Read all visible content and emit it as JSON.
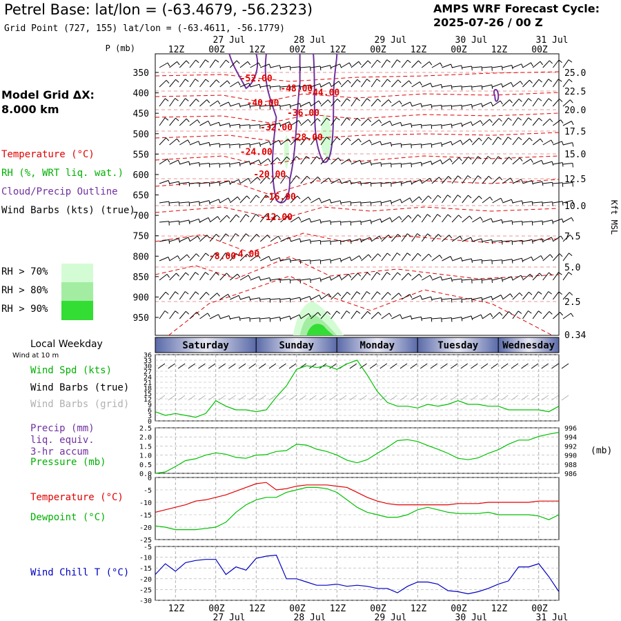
{
  "header": {
    "title": "Petrel Base:  lat/lon = (-63.4679, -56.2323)",
    "subtitle": "Grid Point (727, 155) lat/lon = (-63.4611, -56.1779)",
    "cycle_label": "AMPS WRF Forecast Cycle:",
    "cycle_value": "2025-07-26 / 00  Z"
  },
  "grid_info": {
    "line1": "Model Grid ΔX:",
    "line2": " 8.000 km"
  },
  "legend_upper": {
    "temperature": "Temperature (°C)",
    "rh": "RH (%, WRT liq. wat.)",
    "cloud": "Cloud/Precip Outline",
    "barbs": "Wind Barbs (kts) (true)",
    "rh70": "RH > 70%",
    "rh80": "RH > 80%",
    "rh90": "RH > 90%"
  },
  "legend_lower": {
    "weekday": "Local Weekday",
    "wind10": "Wind at 10 m",
    "wind_spd": "Wind Spd (kts)",
    "barbs_true": "Wind Barbs (true)",
    "barbs_grid": "Wind Barbs (grid)",
    "precip1": "Precip (mm)",
    "precip2": "liq. equiv.",
    "precip3": "3-hr accum",
    "pressure": "Pressure (mb)",
    "temperature": "Temperature (°C)",
    "dewpoint": "Dewpoint (°C)",
    "windchill": "Wind Chill T (°C)"
  },
  "colors": {
    "temperature": "#e00000",
    "dewpoint": "#00c000",
    "wind_speed": "#00c000",
    "pressure": "#00c000",
    "cloud_outline": "#7030a0",
    "windchill": "#0000c0",
    "rh70": "#d4fcd4",
    "rh80": "#a3eda3",
    "rh90": "#33dd33",
    "weekday_band": "#5a6aa8"
  },
  "time_axis": {
    "hour_labels": [
      "12Z",
      "00Z",
      "12Z",
      "00Z",
      "12Z",
      "00Z",
      "12Z",
      "00Z",
      "12Z",
      "00Z"
    ],
    "date_labels": [
      "27 Jul",
      "28 Jul",
      "29 Jul",
      "30 Jul",
      "31 Jul"
    ],
    "weekdays": [
      "Saturday",
      "Sunday",
      "Monday",
      "Tuesday",
      "Wednesday"
    ]
  },
  "chart_data": [
    {
      "type": "heatmap",
      "name": "vertical cross-section",
      "ylabel_left": "P (mb)",
      "ylabel_right": "Kft MSL",
      "pressure_ticks": [
        "350",
        "400",
        "450",
        "500",
        "550",
        "600",
        "650",
        "700",
        "750",
        "800",
        "850",
        "900",
        "950"
      ],
      "height_ticks": [
        "25.0",
        "22.5",
        "20.0",
        "17.5",
        "15.0",
        "12.5",
        "10.0",
        "7.5",
        "5.0",
        "2.5",
        "0.34"
      ],
      "temperature_contour_labels": [
        {
          "label": "-52.00",
          "time_h": 30,
          "p": 365
        },
        {
          "label": "-48.00",
          "time_h": 42,
          "p": 390
        },
        {
          "label": "-44.00",
          "time_h": 50,
          "p": 400
        },
        {
          "label": "-40.00",
          "time_h": 32,
          "p": 425
        },
        {
          "label": "-36.00",
          "time_h": 44,
          "p": 450
        },
        {
          "label": "-32.00",
          "time_h": 36,
          "p": 485
        },
        {
          "label": "-28.00",
          "time_h": 45,
          "p": 510
        },
        {
          "label": "-24.00",
          "time_h": 30,
          "p": 545
        },
        {
          "label": "-20.00",
          "time_h": 34,
          "p": 600
        },
        {
          "label": "-16.00",
          "time_h": 37,
          "p": 655
        },
        {
          "label": "-12.00",
          "time_h": 36,
          "p": 705
        },
        {
          "label": "-8.00",
          "time_h": 20,
          "p": 800
        },
        {
          "label": "-4.00",
          "time_h": 27,
          "p": 795
        }
      ]
    },
    {
      "type": "line",
      "name": "wind speed panel",
      "yticks": [
        "36",
        "33",
        "30",
        "27",
        "24",
        "21",
        "18",
        "15",
        "12",
        "9",
        "6",
        "3",
        "0"
      ],
      "ylim": [
        0,
        36
      ],
      "x_hours": [
        0,
        3,
        6,
        9,
        12,
        15,
        18,
        21,
        24,
        27,
        30,
        33,
        36,
        39,
        42,
        45,
        48,
        51,
        54,
        57,
        60,
        63,
        66,
        69,
        72,
        75,
        78,
        81,
        84,
        87,
        90,
        93,
        96,
        99,
        102,
        105,
        108,
        111,
        114,
        117,
        120
      ],
      "series": [
        {
          "values": [
            5,
            3,
            4,
            3,
            2,
            4,
            11,
            8,
            6,
            6,
            5,
            6,
            13,
            19,
            28,
            30,
            29,
            30,
            28,
            31,
            33,
            25,
            16,
            10,
            8,
            8,
            7,
            9,
            8,
            9,
            11,
            9,
            9,
            8,
            8,
            6,
            6,
            6,
            6,
            5,
            8
          ]
        }
      ]
    },
    {
      "type": "line",
      "name": "precip and pressure panel",
      "yticks_left": [
        "2.5",
        "2.0",
        "1.5",
        "1.0",
        "0.5",
        "0.0"
      ],
      "yticks_right": [
        "996",
        "994",
        "992",
        "990",
        "988",
        "986"
      ],
      "ylim_left": [
        0,
        2.5
      ],
      "ylim_right": [
        986,
        996
      ],
      "unit_right": "(mb)",
      "x_hours": [
        0,
        3,
        6,
        9,
        12,
        15,
        18,
        21,
        24,
        27,
        30,
        33,
        36,
        39,
        42,
        45,
        48,
        51,
        54,
        57,
        60,
        63,
        66,
        69,
        72,
        75,
        78,
        81,
        84,
        87,
        90,
        93,
        96,
        99,
        102,
        105,
        108,
        111,
        114,
        117,
        120
      ],
      "series": [
        {
          "values": [
            986.0,
            986.3,
            987.5,
            988.8,
            989.2,
            990.0,
            990.5,
            990.2,
            989.5,
            989.3,
            990.0,
            990.1,
            990.8,
            991.0,
            992.4,
            992.2,
            991.3,
            990.8,
            990.0,
            988.9,
            988.3,
            989.0,
            990.4,
            991.7,
            993.2,
            993.4,
            993.0,
            992.1,
            991.3,
            990.4,
            989.3,
            989.0,
            989.4,
            990.4,
            991.2,
            992.4,
            993.3,
            993.3,
            994.1,
            994.6,
            995.0
          ]
        }
      ]
    },
    {
      "type": "line",
      "name": "temperature and dewpoint panel",
      "yticks": [
        "0",
        "-5",
        "-10",
        "-15",
        "-20",
        "-25"
      ],
      "ylim": [
        -25,
        0
      ],
      "x_hours": [
        0,
        3,
        6,
        9,
        12,
        15,
        18,
        21,
        24,
        27,
        30,
        33,
        36,
        39,
        42,
        45,
        48,
        51,
        54,
        57,
        60,
        63,
        66,
        69,
        72,
        75,
        78,
        81,
        84,
        87,
        90,
        93,
        96,
        99,
        102,
        105,
        108,
        111,
        114,
        117,
        120
      ],
      "series": [
        {
          "values": [
            -14,
            -13,
            -12,
            -11,
            -9.5,
            -9,
            -8,
            -7,
            -5.5,
            -4,
            -2.5,
            -2,
            -5,
            -4.5,
            -3.5,
            -3,
            -3,
            -3,
            -3.5,
            -4,
            -6,
            -8,
            -9.5,
            -10.5,
            -11,
            -11,
            -11,
            -11,
            -11,
            -11,
            -10.5,
            -10.5,
            -10.5,
            -10,
            -10,
            -10,
            -10,
            -10,
            -9.5,
            -9.5,
            -9.5
          ]
        },
        {
          "values": [
            -19.5,
            -20,
            -21,
            -21,
            -21,
            -20.5,
            -20,
            -18,
            -14,
            -11,
            -9,
            -8,
            -8,
            -6,
            -5,
            -4,
            -4,
            -4.5,
            -6,
            -9,
            -12,
            -14,
            -15,
            -16,
            -16,
            -15,
            -13,
            -12,
            -13,
            -14,
            -14.5,
            -14.5,
            -14.5,
            -14,
            -15,
            -15,
            -15,
            -15,
            -15.5,
            -17,
            -15
          ]
        }
      ]
    },
    {
      "type": "line",
      "name": "wind chill panel",
      "yticks": [
        "-5",
        "-10",
        "-15",
        "-20",
        "-25",
        "-30"
      ],
      "ylim": [
        -30,
        -5
      ],
      "x_hours": [
        0,
        3,
        6,
        9,
        12,
        15,
        18,
        21,
        24,
        27,
        30,
        33,
        36,
        39,
        42,
        45,
        48,
        51,
        54,
        57,
        60,
        63,
        66,
        69,
        72,
        75,
        78,
        81,
        84,
        87,
        90,
        93,
        96,
        99,
        102,
        105,
        108,
        111,
        114,
        117,
        120
      ],
      "series": [
        {
          "values": [
            -18,
            -13,
            -16.5,
            -12.5,
            -11.5,
            -11,
            -11,
            -18,
            -14.5,
            -16,
            -10.5,
            -9.5,
            -9,
            -20,
            -20,
            -21.5,
            -23,
            -23,
            -22.5,
            -23.5,
            -23,
            -23.5,
            -24.5,
            -24.5,
            -26.5,
            -23.5,
            -21.5,
            -21.5,
            -22.5,
            -25.5,
            -26,
            -27,
            -26,
            -24.5,
            -22.5,
            -21,
            -14.5,
            -14.5,
            -13,
            -19,
            -26
          ]
        }
      ]
    }
  ]
}
